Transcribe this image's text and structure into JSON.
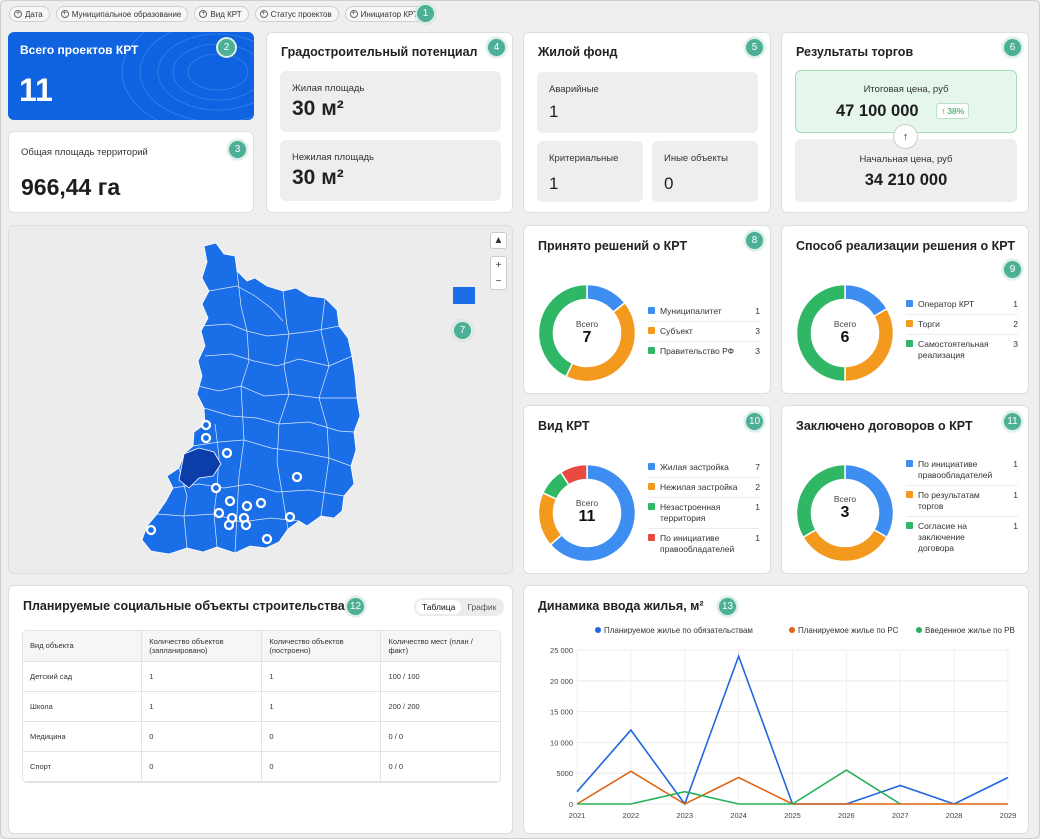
{
  "filters": [
    "Дата",
    "Муниципальное образование",
    "Вид КРТ",
    "Статус проектов",
    "Инициатор КРТ"
  ],
  "badges": [
    "1",
    "2",
    "3",
    "4",
    "5",
    "6",
    "7",
    "8",
    "9",
    "10",
    "11",
    "12",
    "13"
  ],
  "total_projects": {
    "title": "Всего проектов КРТ",
    "value": "11"
  },
  "total_area": {
    "title": "Общая площадь территорий",
    "value": "966,44 га"
  },
  "urban_potential": {
    "title": "Градостроительный потенциал",
    "residential_label": "Жилая площадь",
    "residential_value": "30 м²",
    "nonresidential_label": "Нежилая площадь",
    "nonresidential_value": "30 м²"
  },
  "housing_stock": {
    "title": "Жилой фонд",
    "emergency_label": "Аварийные",
    "emergency_value": "1",
    "critical_label": "Критериальные",
    "critical_value": "1",
    "other_label": "Иные объекты",
    "other_value": "0"
  },
  "auction": {
    "title": "Результаты торгов",
    "final_label": "Итоговая цена, руб",
    "final_value": "47 100 000",
    "growth": "38%",
    "start_label": "Начальная цена, руб",
    "start_value": "34 210 000"
  },
  "decisions": {
    "title": "Принято решений о КРТ",
    "center_label": "Всего",
    "center_value": "7",
    "items": [
      {
        "label": "Муниципалитет",
        "value": 1,
        "color": "#3d8ef0"
      },
      {
        "label": "Субъект",
        "value": 3,
        "color": "#f39a1e"
      },
      {
        "label": "Правительство РФ",
        "value": 3,
        "color": "#2fb765"
      }
    ]
  },
  "method": {
    "title": "Способ реализации решения о КРТ",
    "center_label": "Всего",
    "center_value": "6",
    "items": [
      {
        "label": "Оператор КРТ",
        "value": 1,
        "color": "#3d8ef0"
      },
      {
        "label": "Торги",
        "value": 2,
        "color": "#f39a1e"
      },
      {
        "label": "Самостоятельная реализация",
        "value": 3,
        "color": "#2fb765"
      }
    ]
  },
  "krt_type": {
    "title": "Вид КРТ",
    "center_label": "Всего",
    "center_value": "11",
    "items": [
      {
        "label": "Жилая застройка",
        "value": 7,
        "color": "#3d8ef0"
      },
      {
        "label": "Нежилая застройка",
        "value": 2,
        "color": "#f39a1e"
      },
      {
        "label": "Незастроенная территория",
        "value": 1,
        "color": "#2fb765"
      },
      {
        "label": "По инициативе правообладателей",
        "value": 1,
        "color": "#e84a3f"
      }
    ]
  },
  "contracts": {
    "title": "Заключено договоров о КРТ",
    "center_label": "Всего",
    "center_value": "3",
    "items": [
      {
        "label": "По инициативе правообладателей",
        "value": 1,
        "color": "#3d8ef0"
      },
      {
        "label": "По результатам торгов",
        "value": 1,
        "color": "#f39a1e"
      },
      {
        "label": "Согласие на заключение договора",
        "value": 1,
        "color": "#2fb765"
      }
    ]
  },
  "social": {
    "title": "Планируемые социальные объекты строительства",
    "tabs": [
      "Таблица",
      "График"
    ],
    "headers": [
      "Вид объекта",
      "Количество объектов (запланировано)",
      "Количество объектов (построено)",
      "Количество мест (план / факт)"
    ],
    "rows": [
      [
        "Детский сад",
        "1",
        "1",
        "100 / 100"
      ],
      [
        "Школа",
        "1",
        "1",
        "200 / 200"
      ],
      [
        "Медицина",
        "0",
        "0",
        "0 / 0"
      ],
      [
        "Спорт",
        "0",
        "0",
        "0 / 0"
      ]
    ]
  },
  "map": {
    "accent": "#1a6fe8",
    "highlight": "#0b3ea8"
  },
  "chart_data": {
    "type": "line",
    "title": "Динамика ввода жилья, м²",
    "x": [
      "2021",
      "2022",
      "2023",
      "2024",
      "2025",
      "2026",
      "2027",
      "2028",
      "2029"
    ],
    "ylim": [
      0,
      25000
    ],
    "yticks": [
      "0",
      "5000",
      "10 000",
      "15 000",
      "20 000",
      "25 000"
    ],
    "series": [
      {
        "name": "Планируемое жилье по обязательствам",
        "color": "#1f66e0",
        "values": [
          2000,
          12000,
          0,
          24000,
          0,
          0,
          3000,
          0,
          4300
        ]
      },
      {
        "name": "Планируемое жилье по РС",
        "color": "#e0650f",
        "values": [
          0,
          5300,
          0,
          4300,
          0,
          0,
          0,
          0,
          0
        ]
      },
      {
        "name": "Введенное жилье по РВ",
        "color": "#26b05a",
        "values": [
          0,
          0,
          2000,
          0,
          0,
          5500,
          0,
          null,
          null
        ]
      }
    ]
  }
}
